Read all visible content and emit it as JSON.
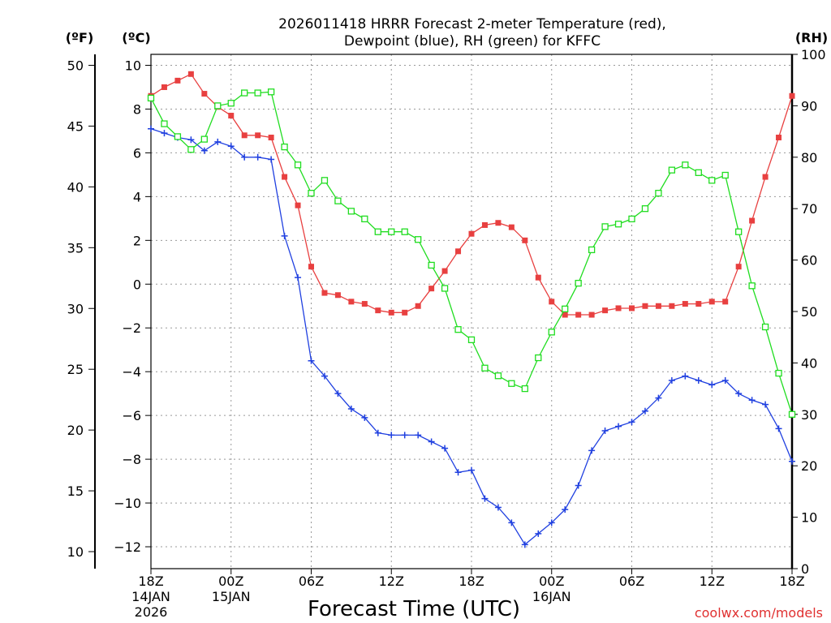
{
  "chart_data": {
    "type": "line",
    "title_line1": "2026011418 HRRR Forecast 2-meter Temperature (red),",
    "title_line2": "Dewpoint (blue), RH (green) for KFFC",
    "xlabel": "Forecast Time (UTC)",
    "credit": "coolwx.com/models",
    "units": {
      "fahrenheit": "(ºF)",
      "celsius": "(ºC)",
      "rh": "(RH)"
    },
    "y_celsius": {
      "range": [
        -13,
        10.5
      ],
      "ticks": [
        10,
        8,
        6,
        4,
        2,
        0,
        -2,
        -4,
        -6,
        -8,
        -10,
        -12
      ],
      "tick_labels": [
        "10",
        "8",
        "6",
        "4",
        "2",
        "0",
        "−2",
        "−4",
        "−6",
        "−8",
        "−10",
        "−12"
      ]
    },
    "y_fahrenheit": {
      "range": [
        8.6,
        50.9
      ],
      "ticks": [
        50,
        45,
        40,
        35,
        30,
        25,
        20,
        15,
        10
      ],
      "tick_labels": [
        "50",
        "45",
        "40",
        "35",
        "30",
        "25",
        "20",
        "15",
        "10"
      ]
    },
    "y_rh": {
      "range": [
        0,
        100
      ],
      "ticks": [
        100,
        90,
        80,
        70,
        60,
        50,
        40,
        30,
        20,
        10,
        0
      ],
      "tick_labels": [
        "100",
        "90",
        "80",
        "70",
        "60",
        "50",
        "40",
        "30",
        "20",
        "10",
        "0"
      ]
    },
    "x_hours": {
      "range": [
        0,
        48
      ]
    },
    "x_ticks": [
      {
        "hour": 0,
        "label": "18Z",
        "sub1": "14JAN",
        "sub2": "2026"
      },
      {
        "hour": 6,
        "label": "00Z",
        "sub1": "15JAN",
        "sub2": ""
      },
      {
        "hour": 12,
        "label": "06Z",
        "sub1": "",
        "sub2": ""
      },
      {
        "hour": 18,
        "label": "12Z",
        "sub1": "",
        "sub2": ""
      },
      {
        "hour": 24,
        "label": "18Z",
        "sub1": "",
        "sub2": ""
      },
      {
        "hour": 30,
        "label": "00Z",
        "sub1": "16JAN",
        "sub2": ""
      },
      {
        "hour": 36,
        "label": "06Z",
        "sub1": "",
        "sub2": ""
      },
      {
        "hour": 42,
        "label": "12Z",
        "sub1": "",
        "sub2": ""
      },
      {
        "hour": 48,
        "label": "18Z",
        "sub1": "",
        "sub2": ""
      }
    ],
    "grid": "dotted",
    "series": [
      {
        "name": "Temperature",
        "axis": "celsius",
        "color": "#e84040",
        "marker": "filled-square",
        "values": [
          8.6,
          9.0,
          9.3,
          9.6,
          8.7,
          8.1,
          7.7,
          6.8,
          6.8,
          6.7,
          4.9,
          3.6,
          0.8,
          -0.4,
          -0.5,
          -0.8,
          -0.9,
          -1.2,
          -1.3,
          -1.3,
          -1.0,
          -0.2,
          0.6,
          1.5,
          2.3,
          2.7,
          2.8,
          2.6,
          2.0,
          0.3,
          -0.8,
          -1.4,
          -1.4,
          -1.4,
          -1.2,
          -1.1,
          -1.1,
          -1.0,
          -1.0,
          -1.0,
          -0.9,
          -0.9,
          -0.8,
          -0.8,
          0.8,
          2.9,
          4.9,
          6.7,
          8.6
        ]
      },
      {
        "name": "Dewpoint",
        "axis": "celsius",
        "color": "#2040e0",
        "marker": "plus",
        "values": [
          7.1,
          6.9,
          6.7,
          6.6,
          6.1,
          6.5,
          6.3,
          5.8,
          5.8,
          5.7,
          2.2,
          0.3,
          -3.5,
          -4.2,
          -5.0,
          -5.7,
          -6.1,
          -6.8,
          -6.9,
          -6.9,
          -6.9,
          -7.2,
          -7.5,
          -8.6,
          -8.5,
          -9.8,
          -10.2,
          -10.9,
          -11.9,
          -11.4,
          -10.9,
          -10.3,
          -9.2,
          -7.6,
          -6.7,
          -6.5,
          -6.3,
          -5.8,
          -5.2,
          -4.4,
          -4.2,
          -4.4,
          -4.6,
          -4.4,
          -5.0,
          -5.3,
          -5.5,
          -6.6,
          -8.1
        ]
      },
      {
        "name": "RH",
        "axis": "rh",
        "color": "#20dd20",
        "marker": "open-square",
        "values": [
          91.5,
          86.5,
          84.0,
          81.5,
          83.5,
          90.0,
          90.5,
          92.5,
          92.5,
          92.7,
          82.0,
          78.5,
          73.0,
          75.5,
          71.5,
          69.5,
          68.0,
          65.5,
          65.5,
          65.5,
          64.0,
          59.0,
          54.5,
          46.5,
          44.5,
          39.0,
          37.5,
          36.0,
          35.0,
          41.0,
          46.0,
          50.5,
          55.5,
          62.0,
          66.5,
          67.0,
          68.0,
          70.0,
          73.0,
          77.5,
          78.5,
          77.0,
          75.5,
          76.5,
          65.5,
          55.0,
          47.0,
          38.0,
          30.0
        ]
      }
    ]
  }
}
